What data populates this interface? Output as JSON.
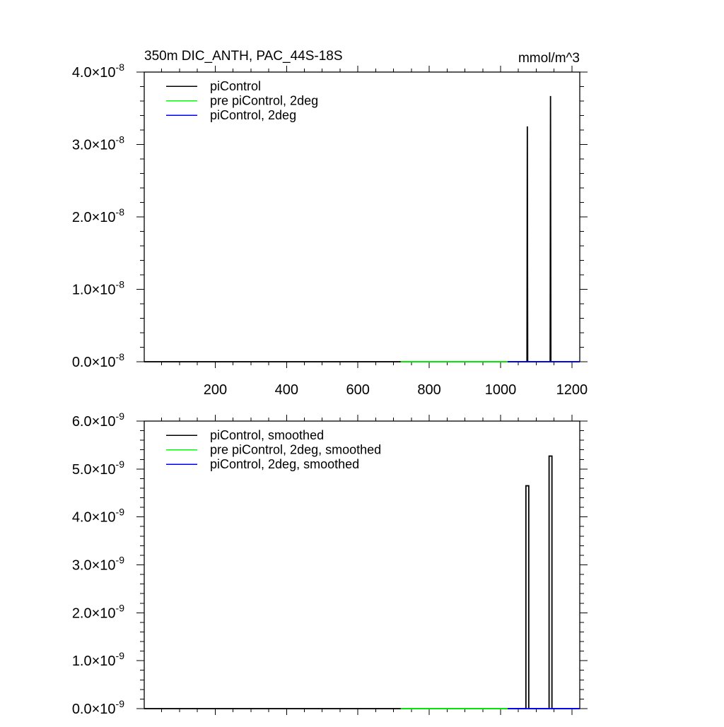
{
  "header": {
    "title": "350m DIC_ANTH, PAC_44S-18S",
    "units": "mmol/m^3"
  },
  "colors": {
    "piControl": "#000000",
    "pre_piControl_2deg": "#00ff00",
    "piControl_2deg": "#0000ff",
    "axis": "#000000"
  },
  "chart_data": [
    {
      "type": "line",
      "title": "350m DIC_ANTH, PAC_44S-18S",
      "units": "mmol/m^3",
      "xlim": [
        1,
        1222
      ],
      "ylim": [
        0,
        4e-08
      ],
      "x_ticks": [
        200,
        400,
        600,
        800,
        1000,
        1200
      ],
      "x_tick_labels": [
        "200",
        "400",
        "600",
        "800",
        "1000",
        "1200"
      ],
      "x_minor_step": 50,
      "y_ticks": [
        0,
        1e-08,
        2e-08,
        3e-08,
        4e-08
      ],
      "y_tick_mantissa": [
        "0.0",
        "1.0",
        "2.0",
        "3.0",
        "4.0"
      ],
      "y_tick_exponent": "-8",
      "y_minor_step": 2e-09,
      "legend": {
        "placement": "top-left",
        "entries": [
          "piControl",
          "pre piControl, 2deg",
          "piControl, 2deg"
        ]
      },
      "series": [
        {
          "name": "piControl",
          "color": "#000000",
          "points": [
            [
              1,
              0
            ],
            [
              1074,
              0
            ],
            [
              1075,
              3.25e-08
            ],
            [
              1076,
              0
            ],
            [
              1139,
              0
            ],
            [
              1140,
              3.67e-08
            ],
            [
              1141,
              0
            ],
            [
              1222,
              0
            ]
          ]
        },
        {
          "name": "pre piControl, 2deg",
          "color": "#00ff00",
          "points": [
            [
              720,
              0
            ],
            [
              1020,
              0
            ]
          ]
        },
        {
          "name": "piControl, 2deg",
          "color": "#0000ff",
          "points": [
            [
              1020,
              0
            ],
            [
              1222,
              0
            ]
          ]
        }
      ]
    },
    {
      "type": "line",
      "xlim": [
        1,
        1222
      ],
      "ylim": [
        0,
        6e-09
      ],
      "x_ticks": [
        200,
        400,
        600,
        800,
        1000,
        1200
      ],
      "x_minor_step": 50,
      "y_ticks": [
        0,
        1e-09,
        2e-09,
        3e-09,
        4e-09,
        5e-09,
        6e-09
      ],
      "y_tick_mantissa": [
        "0.0",
        "1.0",
        "2.0",
        "3.0",
        "4.0",
        "5.0",
        "6.0"
      ],
      "y_tick_exponent": "-9",
      "y_minor_step": 2e-10,
      "legend": {
        "placement": "top-left",
        "entries": [
          "piControl, smoothed",
          "pre piControl, 2deg, smoothed",
          "piControl, 2deg, smoothed"
        ]
      },
      "series": [
        {
          "name": "piControl, smoothed",
          "color": "#000000",
          "points": [
            [
              1,
              0
            ],
            [
              1071,
              0
            ],
            [
              1071,
              4.65e-09
            ],
            [
              1079,
              4.65e-09
            ],
            [
              1079,
              0
            ],
            [
              1136,
              0
            ],
            [
              1136,
              5.27e-09
            ],
            [
              1144,
              5.27e-09
            ],
            [
              1144,
              0
            ],
            [
              1222,
              0
            ]
          ]
        },
        {
          "name": "pre piControl, 2deg, smoothed",
          "color": "#00ff00",
          "points": [
            [
              720,
              0
            ],
            [
              1020,
              0
            ]
          ]
        },
        {
          "name": "piControl, 2deg, smoothed",
          "color": "#0000ff",
          "points": [
            [
              1020,
              0
            ],
            [
              1222,
              0
            ]
          ]
        }
      ]
    }
  ]
}
